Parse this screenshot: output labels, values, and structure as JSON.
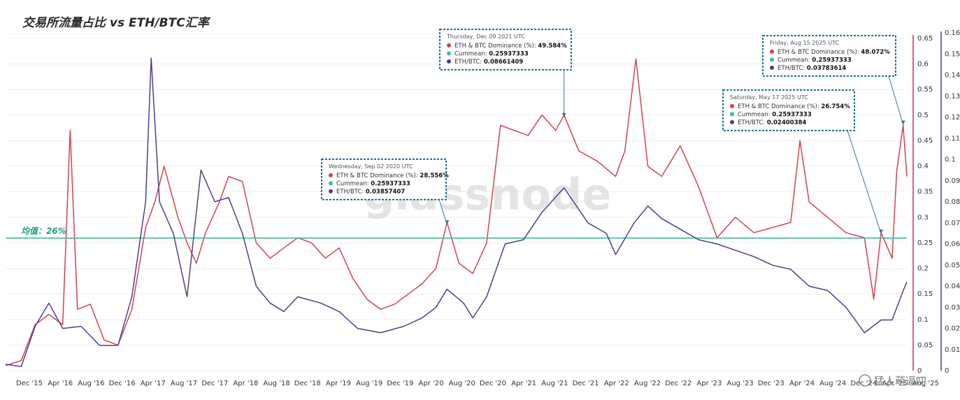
{
  "chart_data": {
    "type": "line",
    "title": "交易所流量占比 vs  ETH/BTC汇率",
    "x_tick_labels": [
      "Dec '15",
      "Apr '16",
      "Aug '16",
      "Dec '16",
      "Apr '17",
      "Aug '17",
      "Dec '17",
      "Apr '18",
      "Aug '18",
      "Dec '18",
      "Apr '19",
      "Aug '19",
      "Dec '19",
      "Apr '20",
      "Aug '20",
      "Dec '20",
      "Apr '21",
      "Aug '21",
      "Dec '21",
      "Apr '22",
      "Aug '22",
      "Dec '22",
      "Apr '23",
      "Aug '23",
      "Dec '23",
      "Apr '24",
      "Aug '24",
      "Dec '24",
      "Apr '25",
      "Aug '25"
    ],
    "y_left": {
      "ylim": [
        0,
        0.65
      ],
      "ticks": [
        "0",
        "0.05",
        "0.1",
        "0.15",
        "0.2",
        "0.25",
        "0.3",
        "0.35",
        "0.4",
        "0.45",
        "0.5",
        "0.55",
        "0.6",
        "0.65"
      ],
      "color": "#c8374b"
    },
    "y_right": {
      "ylim": [
        0,
        0.16
      ],
      "ticks": [
        "0",
        "0.01",
        "0.02",
        "0.03",
        "0.04",
        "0.05",
        "0.06",
        "0.07",
        "0.08",
        "0.09",
        "0.1",
        "0.11",
        "0.12",
        "0.13",
        "0.14",
        "0.15",
        "0.16"
      ],
      "color": "#4b3f8c"
    },
    "mean_line": {
      "value": 0.25937333,
      "label": "均值：26%",
      "color": "#3dbd9b"
    },
    "series": [
      {
        "name": "ETH & BTC Dominance (%)",
        "axis": "left",
        "color": "#d2424f",
        "points": [
          [
            2015.88,
            0.01
          ],
          [
            2016.05,
            0.02
          ],
          [
            2016.2,
            0.09
          ],
          [
            2016.35,
            0.11
          ],
          [
            2016.5,
            0.09
          ],
          [
            2016.58,
            0.47
          ],
          [
            2016.66,
            0.12
          ],
          [
            2016.8,
            0.13
          ],
          [
            2016.95,
            0.06
          ],
          [
            2017.1,
            0.05
          ],
          [
            2017.25,
            0.12
          ],
          [
            2017.4,
            0.28
          ],
          [
            2017.5,
            0.33
          ],
          [
            2017.6,
            0.4
          ],
          [
            2017.75,
            0.3
          ],
          [
            2017.85,
            0.25
          ],
          [
            2017.95,
            0.21
          ],
          [
            2018.05,
            0.27
          ],
          [
            2018.2,
            0.33
          ],
          [
            2018.3,
            0.38
          ],
          [
            2018.45,
            0.37
          ],
          [
            2018.6,
            0.25
          ],
          [
            2018.75,
            0.22
          ],
          [
            2018.9,
            0.24
          ],
          [
            2019.05,
            0.26
          ],
          [
            2019.2,
            0.25
          ],
          [
            2019.35,
            0.22
          ],
          [
            2019.5,
            0.24
          ],
          [
            2019.65,
            0.18
          ],
          [
            2019.8,
            0.14
          ],
          [
            2019.95,
            0.12
          ],
          [
            2020.1,
            0.13
          ],
          [
            2020.25,
            0.15
          ],
          [
            2020.4,
            0.17
          ],
          [
            2020.55,
            0.2
          ],
          [
            2020.67,
            0.29
          ],
          [
            2020.8,
            0.21
          ],
          [
            2020.95,
            0.19
          ],
          [
            2021.1,
            0.25
          ],
          [
            2021.25,
            0.48
          ],
          [
            2021.4,
            0.47
          ],
          [
            2021.55,
            0.46
          ],
          [
            2021.7,
            0.5
          ],
          [
            2021.85,
            0.47
          ],
          [
            2021.94,
            0.5
          ],
          [
            2022.1,
            0.43
          ],
          [
            2022.3,
            0.41
          ],
          [
            2022.5,
            0.38
          ],
          [
            2022.6,
            0.43
          ],
          [
            2022.72,
            0.61
          ],
          [
            2022.85,
            0.4
          ],
          [
            2023.0,
            0.38
          ],
          [
            2023.2,
            0.44
          ],
          [
            2023.4,
            0.36
          ],
          [
            2023.6,
            0.26
          ],
          [
            2023.8,
            0.3
          ],
          [
            2024.0,
            0.27
          ],
          [
            2024.2,
            0.28
          ],
          [
            2024.4,
            0.29
          ],
          [
            2024.5,
            0.45
          ],
          [
            2024.6,
            0.33
          ],
          [
            2024.8,
            0.3
          ],
          [
            2025.0,
            0.27
          ],
          [
            2025.2,
            0.26
          ],
          [
            2025.3,
            0.14
          ],
          [
            2025.38,
            0.27
          ],
          [
            2025.5,
            0.22
          ],
          [
            2025.55,
            0.39
          ],
          [
            2025.62,
            0.48
          ],
          [
            2025.66,
            0.38
          ]
        ]
      },
      {
        "name": "Cummean",
        "axis": "left",
        "color": "#3dbd9b",
        "points": [
          [
            2015.88,
            0.25937333
          ],
          [
            2025.66,
            0.25937333
          ]
        ]
      },
      {
        "name": "ETH/BTC",
        "axis": "right",
        "color": "#4b3f8c",
        "points": [
          [
            2015.88,
            0.003
          ],
          [
            2016.05,
            0.002
          ],
          [
            2016.2,
            0.021
          ],
          [
            2016.35,
            0.032
          ],
          [
            2016.5,
            0.02
          ],
          [
            2016.7,
            0.021
          ],
          [
            2016.9,
            0.012
          ],
          [
            2017.1,
            0.012
          ],
          [
            2017.25,
            0.035
          ],
          [
            2017.4,
            0.08
          ],
          [
            2017.46,
            0.148
          ],
          [
            2017.55,
            0.08
          ],
          [
            2017.7,
            0.065
          ],
          [
            2017.85,
            0.035
          ],
          [
            2018.0,
            0.095
          ],
          [
            2018.15,
            0.08
          ],
          [
            2018.3,
            0.082
          ],
          [
            2018.45,
            0.065
          ],
          [
            2018.6,
            0.04
          ],
          [
            2018.75,
            0.032
          ],
          [
            2018.9,
            0.028
          ],
          [
            2019.05,
            0.035
          ],
          [
            2019.3,
            0.032
          ],
          [
            2019.5,
            0.028
          ],
          [
            2019.7,
            0.02
          ],
          [
            2019.95,
            0.018
          ],
          [
            2020.2,
            0.021
          ],
          [
            2020.4,
            0.025
          ],
          [
            2020.55,
            0.03
          ],
          [
            2020.67,
            0.03857407
          ],
          [
            2020.85,
            0.032
          ],
          [
            2020.95,
            0.025
          ],
          [
            2021.1,
            0.035
          ],
          [
            2021.3,
            0.06
          ],
          [
            2021.5,
            0.062
          ],
          [
            2021.7,
            0.075
          ],
          [
            2021.94,
            0.08661409
          ],
          [
            2022.2,
            0.07
          ],
          [
            2022.4,
            0.065
          ],
          [
            2022.5,
            0.055
          ],
          [
            2022.7,
            0.07
          ],
          [
            2022.85,
            0.078
          ],
          [
            2023.0,
            0.072
          ],
          [
            2023.2,
            0.067
          ],
          [
            2023.4,
            0.062
          ],
          [
            2023.6,
            0.06
          ],
          [
            2023.8,
            0.057
          ],
          [
            2024.0,
            0.054
          ],
          [
            2024.2,
            0.05
          ],
          [
            2024.4,
            0.048
          ],
          [
            2024.6,
            0.04
          ],
          [
            2024.8,
            0.038
          ],
          [
            2025.0,
            0.03
          ],
          [
            2025.2,
            0.018
          ],
          [
            2025.38,
            0.02400384
          ],
          [
            2025.5,
            0.024
          ],
          [
            2025.62,
            0.03783614
          ],
          [
            2025.66,
            0.042
          ]
        ]
      }
    ],
    "tooltips": [
      {
        "date": "Wednesday, Sep 02 2020 UTC",
        "rows": [
          {
            "label": "ETH & BTC Dominance (%):",
            "value": "28.556%",
            "color": "#d2424f"
          },
          {
            "label": "Cummean:",
            "value": "0.25937333",
            "color": "#3dbd9b"
          },
          {
            "label": "ETH/BTC:",
            "value": "0.03857407",
            "color": "#4b3f8c"
          }
        ],
        "x": 2020.67,
        "y": 0.286
      },
      {
        "date": "Thursday, Dec 09 2021 UTC",
        "rows": [
          {
            "label": "ETH & BTC Dominance (%):",
            "value": "49.584%",
            "color": "#d2424f"
          },
          {
            "label": "Cummean:",
            "value": "0.25937333",
            "color": "#3dbd9b"
          },
          {
            "label": "ETH/BTC:",
            "value": "0.08661409",
            "color": "#4b3f8c"
          }
        ],
        "x": 2021.94,
        "y": 0.496
      },
      {
        "date": "Saturday, May 17 2025 UTC",
        "rows": [
          {
            "label": "ETH & BTC Dominance (%):",
            "value": "26.754%",
            "color": "#d2424f"
          },
          {
            "label": "Cummean:",
            "value": "0.25937333",
            "color": "#3dbd9b"
          },
          {
            "label": "ETH/BTC:",
            "value": "0.02400384",
            "color": "#4b3f8c"
          }
        ],
        "x": 2025.38,
        "y": 0.268
      },
      {
        "date": "Friday, Aug 15 2025 UTC",
        "rows": [
          {
            "label": "ETH & BTC Dominance (%):",
            "value": "48.072%",
            "color": "#d2424f"
          },
          {
            "label": "Cummean:",
            "value": "0.25937333",
            "color": "#3dbd9b"
          },
          {
            "label": "ETH/BTC:",
            "value": "0.03783614",
            "color": "#4b3f8c"
          }
        ],
        "x": 2025.62,
        "y": 0.481
      }
    ],
    "watermark": "glassnode",
    "brand": "猛人萌逼叨",
    "grid": true
  }
}
